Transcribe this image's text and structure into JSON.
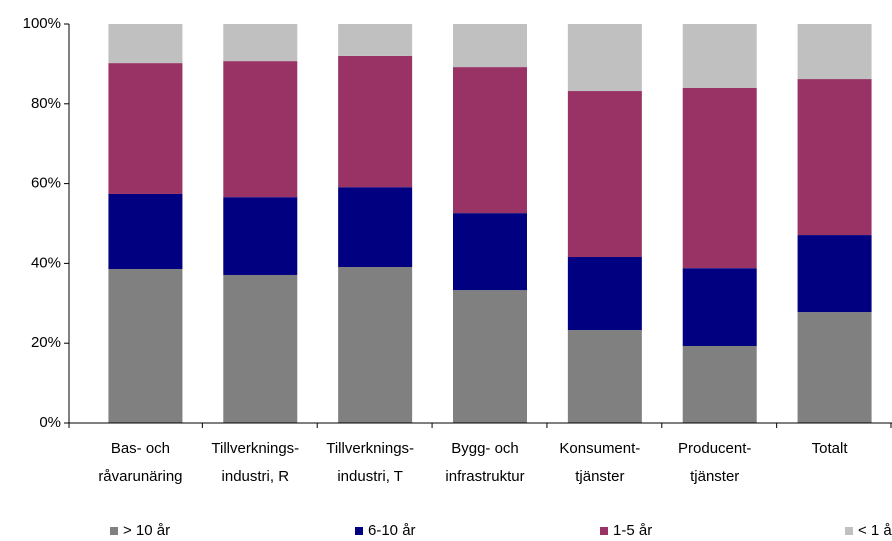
{
  "chart_data": {
    "type": "stacked_bar",
    "categories": [
      [
        "Bas- och",
        "råvarunäring"
      ],
      [
        "Tillverknings-",
        "industri, R"
      ],
      [
        "Tillverknings-",
        "industri, T"
      ],
      [
        "Bygg- och",
        "infrastruktur"
      ],
      [
        "Konsument-",
        "tjänster"
      ],
      [
        "Producent-",
        "tjänster"
      ],
      [
        "Totalt"
      ]
    ],
    "series": [
      {
        "name": "> 10 år",
        "color": "#808080",
        "values": [
          38.6,
          37.1,
          39.1,
          33.3,
          23.3,
          19.3,
          27.8
        ]
      },
      {
        "name": "6-10 år",
        "color": "#000080",
        "values": [
          18.8,
          19.5,
          20.0,
          19.3,
          18.3,
          19.5,
          19.3
        ]
      },
      {
        "name": "1-5 år",
        "color": "#993366",
        "values": [
          32.8,
          34.1,
          32.9,
          36.6,
          41.6,
          45.2,
          39.1
        ]
      },
      {
        "name": "< 1 år",
        "color": "#c0c0c0",
        "values": [
          9.8,
          9.3,
          8.0,
          10.8,
          16.8,
          16.0,
          13.8
        ]
      }
    ],
    "ylim": [
      0,
      100
    ],
    "yticks": [
      {
        "value": 0,
        "label": "0%"
      },
      {
        "value": 20,
        "label": "20%"
      },
      {
        "value": 40,
        "label": "40%"
      },
      {
        "value": 60,
        "label": "60%"
      },
      {
        "value": 80,
        "label": "80%"
      },
      {
        "value": 100,
        "label": "100%"
      }
    ],
    "legend": "bottom"
  }
}
